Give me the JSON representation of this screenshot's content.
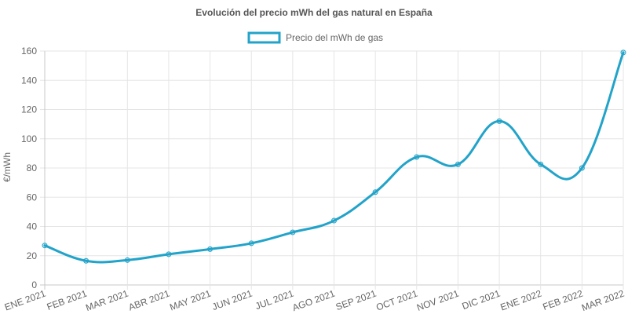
{
  "chart_data": {
    "type": "line",
    "title": "Evolución del precio mWh del gas natural en España",
    "ylabel": "€/mWh",
    "xlabel": "",
    "ylim": [
      0,
      160
    ],
    "yticks": [
      0,
      20,
      40,
      60,
      80,
      100,
      120,
      140,
      160
    ],
    "grid": true,
    "legend_position": "top",
    "categories": [
      "ENE 2021",
      "FEB 2021",
      "MAR 2021",
      "ABR 2021",
      "MAY 2021",
      "JUN 2021",
      "JUL 2021",
      "AGO 2021",
      "SEP 2021",
      "OCT 2021",
      "NOV 2021",
      "DIC 2021",
      "ENE 2022",
      "FEB 2022",
      "MAR 2022"
    ],
    "series": [
      {
        "name": "Precio del mWh de gas",
        "color": "#22a3c9",
        "values": [
          27,
          16.5,
          17,
          21,
          24.5,
          28.5,
          36,
          44,
          63.5,
          87.5,
          82.5,
          112,
          82.5,
          80,
          159
        ]
      }
    ]
  }
}
